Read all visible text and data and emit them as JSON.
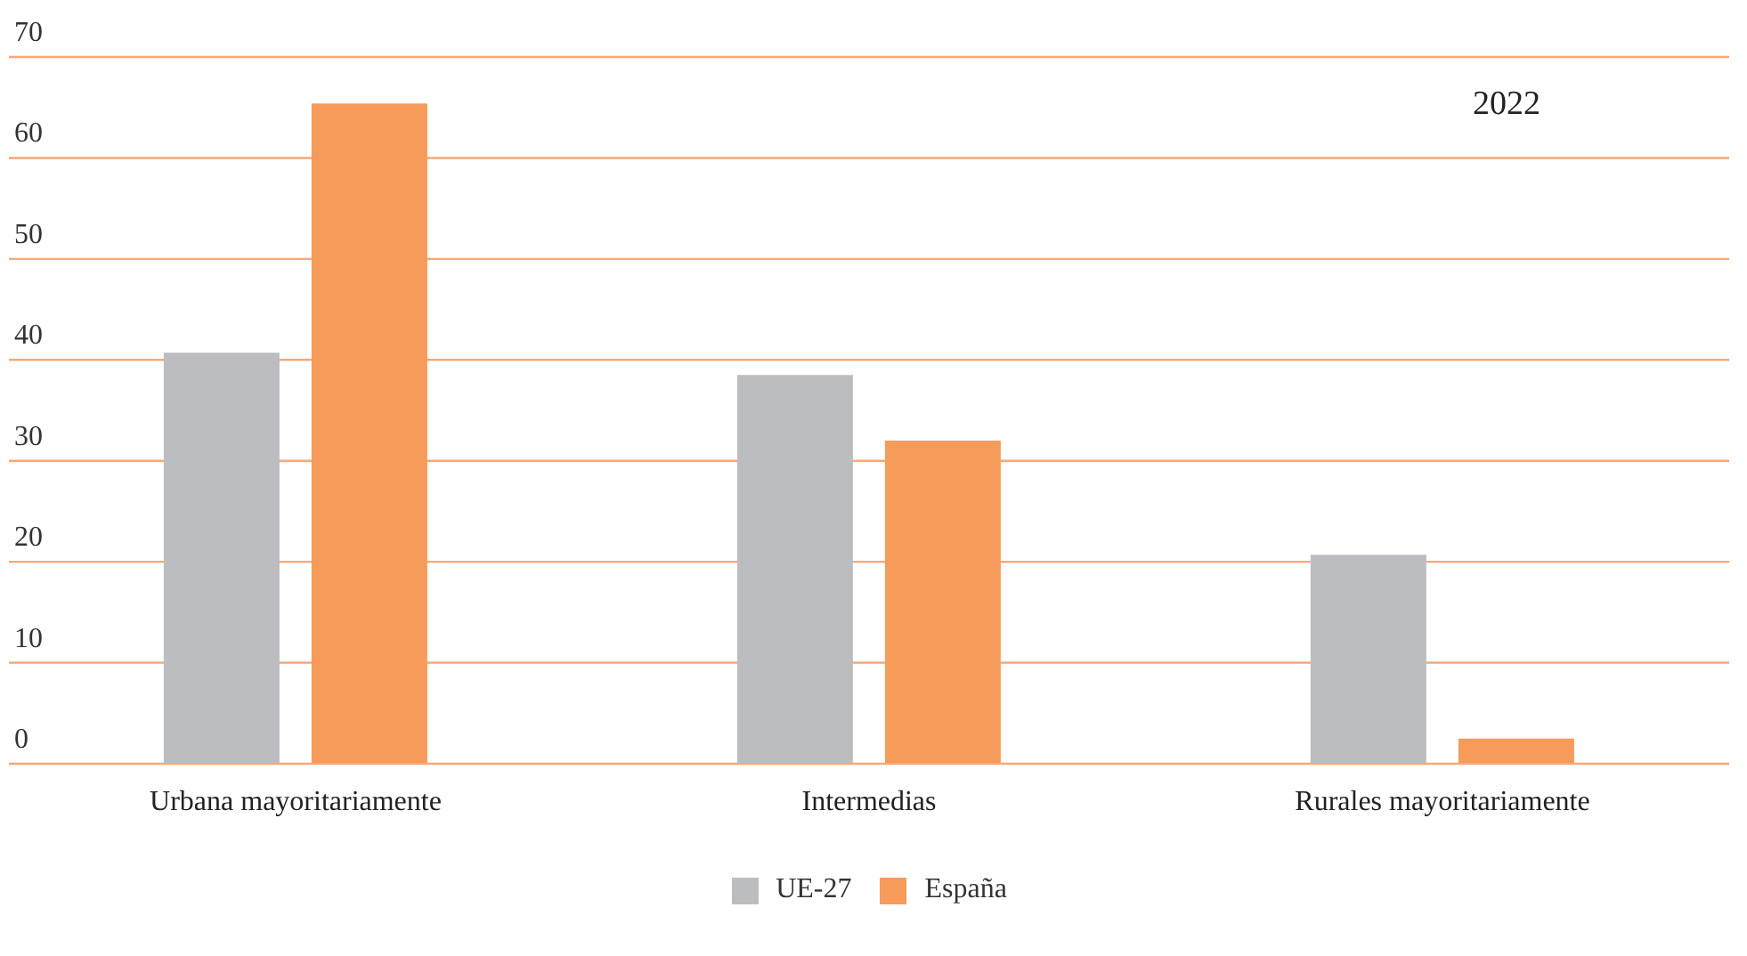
{
  "chart_data": {
    "type": "bar",
    "categories": [
      "Urbana mayoritariamente",
      "Intermedias",
      "Rurales mayoritariamente"
    ],
    "series": [
      {
        "name": "UE-27",
        "color": "#bcbdc0",
        "values": [
          40.7,
          38.5,
          20.7
        ]
      },
      {
        "name": "España",
        "color": "#f79b5a",
        "values": [
          65.4,
          32.0,
          2.5
        ]
      }
    ],
    "ylim": [
      0,
      70
    ],
    "yticks": [
      0,
      10,
      20,
      30,
      40,
      50,
      60,
      70
    ],
    "grid": "y",
    "legend": "bottom",
    "annotations": [
      "2022"
    ]
  }
}
